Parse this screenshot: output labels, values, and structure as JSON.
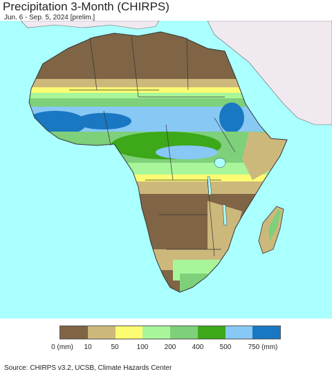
{
  "header": {
    "title": "Precipitation 3-Month (CHIRPS)",
    "subtitle": "Jun. 6 - Sep. 5, 2024 [prelim.]"
  },
  "legend": {
    "labels": [
      "0 (mm)",
      "10",
      "50",
      "100",
      "200",
      "400",
      "500",
      "750 (mm)"
    ],
    "colors": [
      "#7f6545",
      "#cdb87c",
      "#fcfc72",
      "#a8f59a",
      "#7ed07a",
      "#3ca81a",
      "#88c8f5",
      "#1a78c2"
    ]
  },
  "colors": {
    "ocean": "#aaffff",
    "non_africa_land": "#f0eaf0",
    "border": "#333333"
  },
  "footer": {
    "source": "Source: CHIRPS v3.2, UCSB, Climate Hazards Center"
  }
}
